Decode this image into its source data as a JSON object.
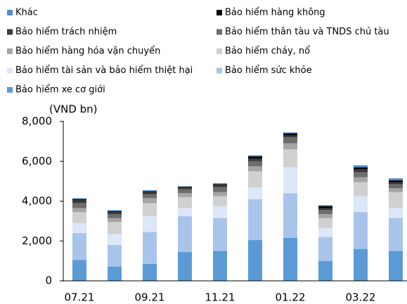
{
  "chart_data": {
    "type": "stacked_bar",
    "y_label": "(VND bn)",
    "categories": [
      "07.21",
      null,
      "09.21",
      null,
      "11.21",
      null,
      "01.22",
      null,
      "03.22",
      null
    ],
    "series": [
      {
        "name": "Bảo hiểm xe cơ giới",
        "color": "#5b9bd5",
        "values": [
          1050,
          720,
          850,
          1450,
          1500,
          2050,
          2150,
          1000,
          1600,
          1500
        ]
      },
      {
        "name": "Bảo hiểm sức khỏe",
        "color": "#a9c4eb",
        "values": [
          1350,
          1080,
          1600,
          1800,
          1650,
          2050,
          2250,
          1200,
          1850,
          1650
        ]
      },
      {
        "name": "Bảo hiểm tài sản và bảo hiểm thiệt hại",
        "color": "#dce7f7",
        "values": [
          500,
          550,
          800,
          400,
          600,
          600,
          1300,
          450,
          800,
          500
        ]
      },
      {
        "name": "Bảo hiểm cháy, nổ",
        "color": "#d0d0d0",
        "values": [
          550,
          600,
          650,
          550,
          500,
          800,
          900,
          500,
          700,
          800
        ]
      },
      {
        "name": "Bảo hiểm hàng hóa vận chuyển",
        "color": "#a5a5a5",
        "values": [
          200,
          200,
          250,
          200,
          200,
          250,
          300,
          200,
          250,
          200
        ]
      },
      {
        "name": "Bảo hiểm thân tàu và TNDS chủ tàu",
        "color": "#6d6d6d",
        "values": [
          250,
          200,
          200,
          200,
          250,
          250,
          300,
          200,
          250,
          200
        ]
      },
      {
        "name": "Bảo hiểm trách nhiệm",
        "color": "#3a3a3a",
        "values": [
          150,
          100,
          100,
          100,
          100,
          150,
          100,
          100,
          150,
          100
        ]
      },
      {
        "name": "Bảo hiểm hàng không",
        "color": "#000000",
        "values": [
          50,
          50,
          50,
          30,
          50,
          100,
          100,
          100,
          100,
          100
        ]
      },
      {
        "name": "Khác",
        "color": "#4f8fd0",
        "values": [
          50,
          50,
          50,
          20,
          50,
          50,
          50,
          50,
          100,
          100
        ]
      }
    ],
    "ylim": [
      0,
      8000
    ],
    "yticks": [
      0,
      {
        "value": 2000,
        "label": "2,000"
      },
      {
        "value": 4000,
        "label": "4,000"
      },
      {
        "value": 6000,
        "label": "6,000"
      },
      {
        "value": 8000,
        "label": "8,000"
      }
    ],
    "grid": false
  }
}
